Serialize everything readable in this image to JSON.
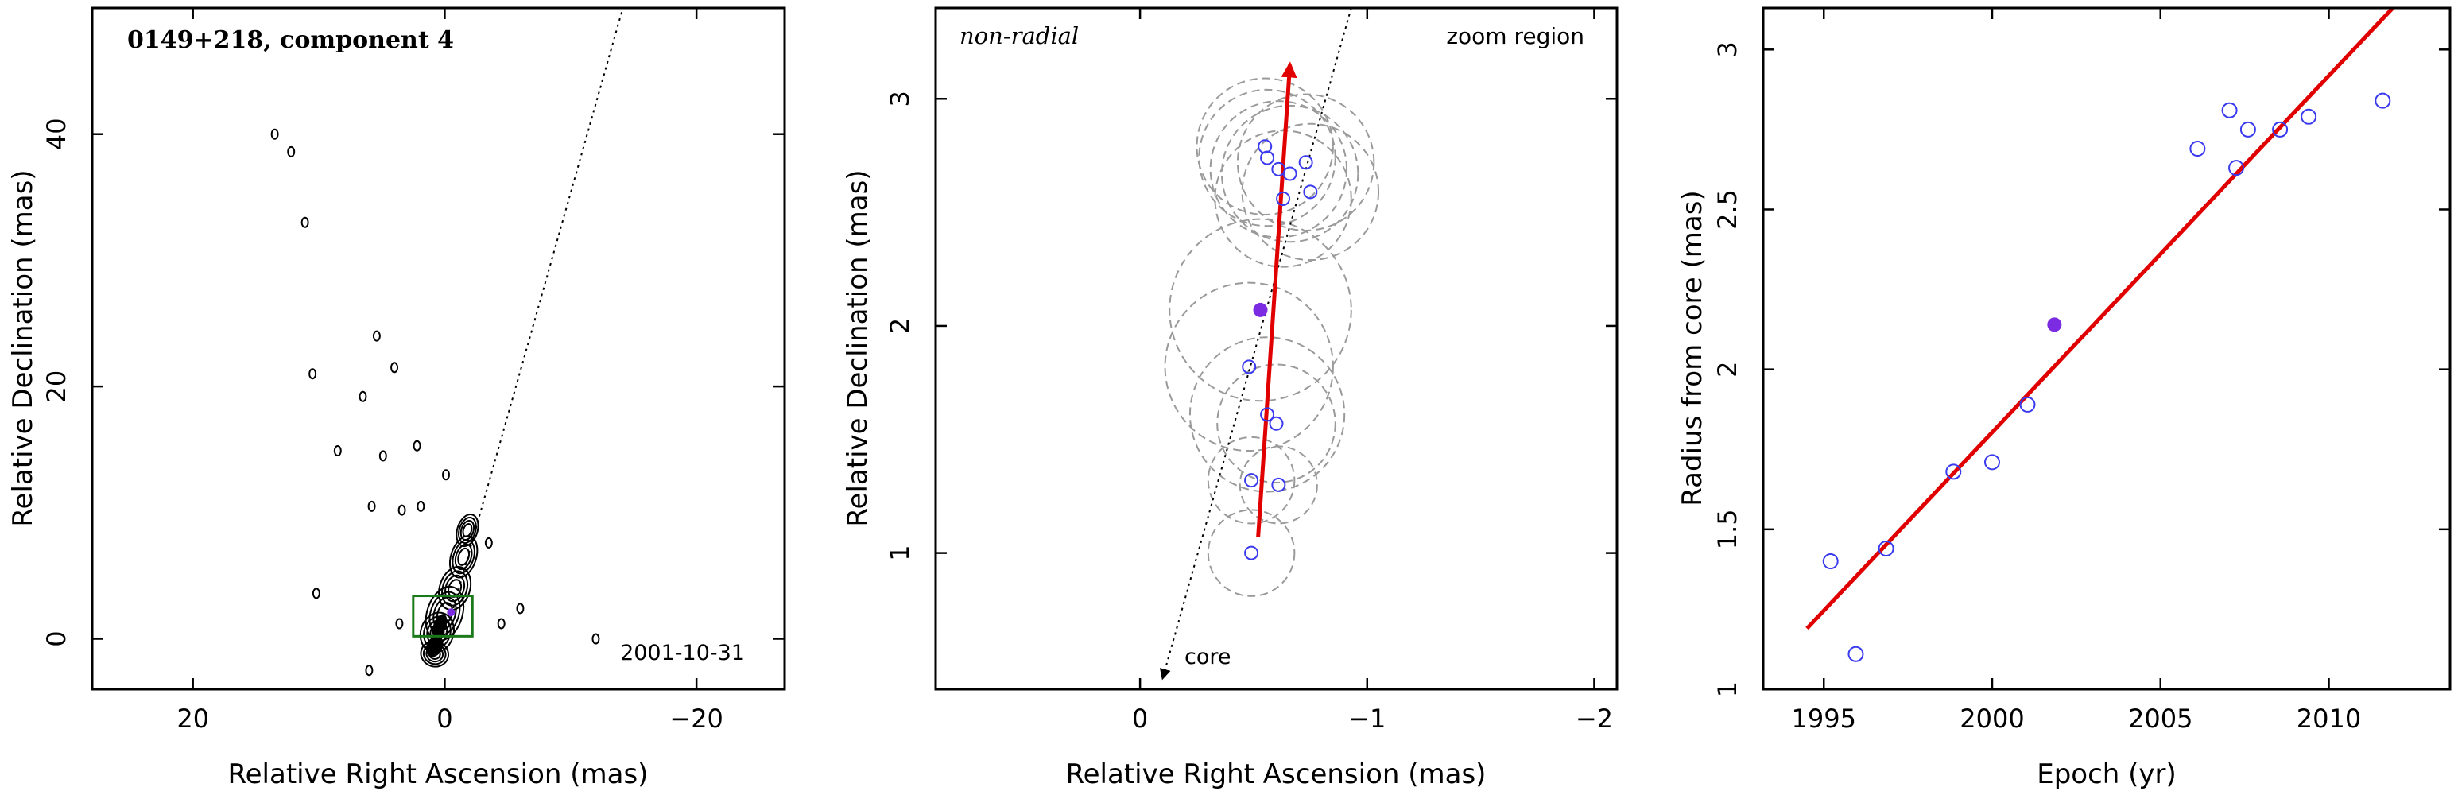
{
  "chart_data": [
    {
      "type": "scatter",
      "panel": "map",
      "title": "0149+218, component 4",
      "annotation_date": "2001-10-31",
      "xlabel": "Relative Right Ascension (mas)",
      "ylabel": "Relative Declination (mas)",
      "xlim": [
        28,
        -27
      ],
      "ylim": [
        -4,
        50
      ],
      "x_ticks": [
        20,
        0,
        -20
      ],
      "y_ticks": [
        0,
        20,
        40
      ],
      "contour_islands": [
        {
          "x": 13.5,
          "y": 40.0
        },
        {
          "x": 12.2,
          "y": 38.6
        },
        {
          "x": 11.1,
          "y": 33.0
        },
        {
          "x": 10.5,
          "y": 21.0
        },
        {
          "x": 5.4,
          "y": 24.0
        },
        {
          "x": 4.0,
          "y": 21.5
        },
        {
          "x": 6.5,
          "y": 19.2
        },
        {
          "x": 4.9,
          "y": 14.5
        },
        {
          "x": 8.5,
          "y": 14.9
        },
        {
          "x": 2.2,
          "y": 15.3
        },
        {
          "x": -0.1,
          "y": 13.0
        },
        {
          "x": 5.8,
          "y": 10.5
        },
        {
          "x": 3.4,
          "y": 10.2
        },
        {
          "x": 1.9,
          "y": 10.5
        },
        {
          "x": 10.2,
          "y": 3.6
        },
        {
          "x": 6.0,
          "y": -2.5
        },
        {
          "x": 3.6,
          "y": 1.2
        },
        {
          "x": -3.5,
          "y": 7.6
        },
        {
          "x": -4.5,
          "y": 1.2
        },
        {
          "x": -6.0,
          "y": 2.4
        },
        {
          "x": -12.0,
          "y": 0.0
        }
      ],
      "jet_axis": {
        "from": [
          0,
          0
        ],
        "to": [
          -15,
          53
        ]
      },
      "zoom_box": {
        "x": [
          2.5,
          -2.2
        ],
        "y": [
          0.2,
          3.4
        ]
      },
      "colors": {
        "box": "#1a7a1a",
        "highlight": "#7b2be2"
      }
    },
    {
      "type": "scatter",
      "panel": "zoom",
      "label": "non-radial",
      "corner_text": "zoom region",
      "core_label": "core",
      "xlabel": "Relative Right Ascension (mas)",
      "ylabel": "Relative Declination (mas)",
      "xlim": [
        0.9,
        -2.1
      ],
      "ylim": [
        0.4,
        3.4
      ],
      "x_ticks": [
        0,
        -1,
        -2
      ],
      "y_ticks": [
        1,
        2,
        3
      ],
      "points": [
        {
          "x": -0.49,
          "y": 1.0,
          "r": 0.19
        },
        {
          "x": -0.49,
          "y": 1.32,
          "r": 0.19
        },
        {
          "x": -0.61,
          "y": 1.3,
          "r": 0.17
        },
        {
          "x": -0.56,
          "y": 1.61,
          "r": 0.34
        },
        {
          "x": -0.6,
          "y": 1.57,
          "r": 0.26
        },
        {
          "x": -0.48,
          "y": 1.82,
          "r": 0.37
        },
        {
          "x": -0.63,
          "y": 2.56,
          "r": 0.3
        },
        {
          "x": -0.61,
          "y": 2.69,
          "r": 0.3
        },
        {
          "x": -0.66,
          "y": 2.67,
          "r": 0.3
        },
        {
          "x": -0.73,
          "y": 2.72,
          "r": 0.3
        },
        {
          "x": -0.75,
          "y": 2.59,
          "r": 0.3
        },
        {
          "x": -0.55,
          "y": 2.79,
          "r": 0.3
        },
        {
          "x": -0.56,
          "y": 2.74,
          "r": 0.3
        }
      ],
      "highlight": {
        "x": -0.53,
        "y": 2.07,
        "r": 0.4
      },
      "fit_arrow": {
        "from": [
          -0.52,
          1.07
        ],
        "to": [
          -0.66,
          3.15
        ]
      },
      "core_axis": {
        "from": [
          -0.93,
          3.4
        ],
        "to": [
          -0.1,
          0.45
        ]
      },
      "colors": {
        "points": "#3a3aee",
        "highlight": "#7b2be2",
        "arrow": "#e00000",
        "circles": "#9a9a9a"
      }
    },
    {
      "type": "scatter",
      "panel": "radius",
      "xlabel": "Epoch (yr)",
      "ylabel": "Radius from core (mas)",
      "xlim": [
        1993.2,
        2013.6
      ],
      "ylim": [
        1.0,
        3.13
      ],
      "x_ticks": [
        1995,
        2000,
        2005,
        2010
      ],
      "y_ticks": [
        1,
        1.5,
        2,
        2.5,
        3
      ],
      "points": [
        {
          "x": 1995.2,
          "y": 1.4
        },
        {
          "x": 1995.95,
          "y": 1.11
        },
        {
          "x": 1996.85,
          "y": 1.44
        },
        {
          "x": 1998.85,
          "y": 1.68
        },
        {
          "x": 2000.0,
          "y": 1.71
        },
        {
          "x": 2001.05,
          "y": 1.89
        },
        {
          "x": 2006.1,
          "y": 2.69
        },
        {
          "x": 2007.05,
          "y": 2.81
        },
        {
          "x": 2007.25,
          "y": 2.63
        },
        {
          "x": 2007.6,
          "y": 2.75
        },
        {
          "x": 2008.55,
          "y": 2.75
        },
        {
          "x": 2009.4,
          "y": 2.79
        },
        {
          "x": 2011.6,
          "y": 2.84
        }
      ],
      "highlight": {
        "x": 2001.85,
        "y": 2.14
      },
      "fit_line": {
        "from": [
          1994.5,
          1.19
        ],
        "to": [
          2011.9,
          3.13
        ]
      },
      "colors": {
        "points": "#3a3aee",
        "highlight": "#7b2be2",
        "line": "#e00000"
      }
    }
  ]
}
